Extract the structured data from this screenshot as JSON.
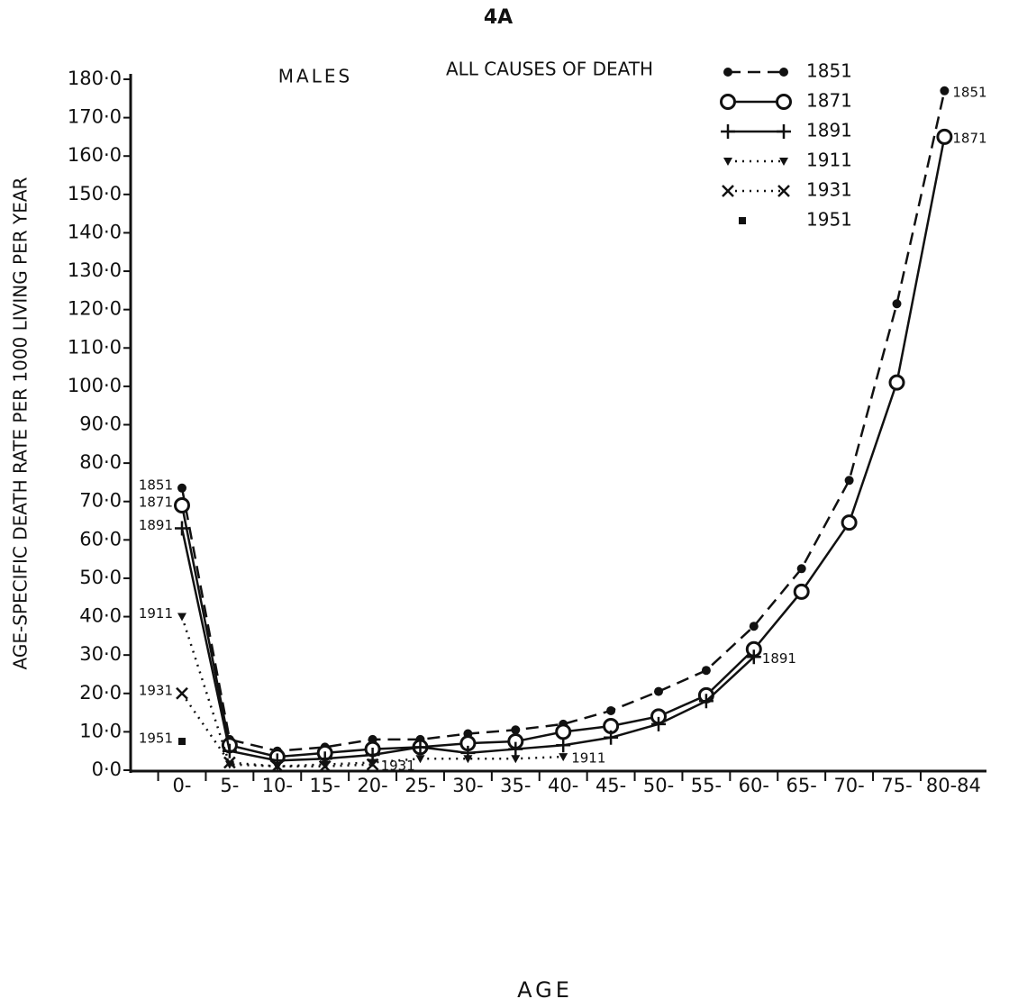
{
  "chart_data": {
    "type": "line",
    "title": "4A",
    "subtitle": "MALES",
    "annotation": "ALL CAUSES OF DEATH",
    "x_label": "AGE",
    "y_label": "AGE-SPECIFIC DEATH RATE  PER 1000 LIVING PER YEAR",
    "categories": [
      "0-",
      "5-",
      "10-",
      "15-",
      "20-",
      "25-",
      "30-",
      "35-",
      "40-",
      "45-",
      "50-",
      "55-",
      "60-",
      "65-",
      "70-",
      "75-",
      "80-84"
    ],
    "ylim": [
      0,
      180
    ],
    "yticks": [
      {
        "value": 0,
        "label": "0·0"
      },
      {
        "value": 10,
        "label": "10·0"
      },
      {
        "value": 20,
        "label": "20·0"
      },
      {
        "value": 30,
        "label": "30·0"
      },
      {
        "value": 40,
        "label": "40·0"
      },
      {
        "value": 50,
        "label": "50·0"
      },
      {
        "value": 60,
        "label": "60·0"
      },
      {
        "value": 70,
        "label": "70·0"
      },
      {
        "value": 80,
        "label": "80·0"
      },
      {
        "value": 90,
        "label": "90·0"
      },
      {
        "value": 100,
        "label": "100·0"
      },
      {
        "value": 110,
        "label": "110·0"
      },
      {
        "value": 120,
        "label": "120·0"
      },
      {
        "value": 130,
        "label": "130·0"
      },
      {
        "value": 140,
        "label": "140·0"
      },
      {
        "value": 150,
        "label": "150·0"
      },
      {
        "value": 160,
        "label": "160·0"
      },
      {
        "value": 170,
        "label": "170·0"
      },
      {
        "value": 180,
        "label": "180·0"
      }
    ],
    "grid": false,
    "legend": "upper right",
    "series": [
      {
        "name": "1851",
        "color": "#111111",
        "line": "dashed",
        "marker": "dot",
        "values": [
          73.5,
          8,
          5,
          6,
          8,
          8,
          9.5,
          10.5,
          12,
          15.5,
          20.5,
          26,
          37.5,
          52.5,
          75.5,
          121.5,
          177
        ]
      },
      {
        "name": "1871",
        "color": "#111111",
        "line": "solid",
        "marker": "circle",
        "values": [
          69,
          6.5,
          3.5,
          4.5,
          5.5,
          6,
          7,
          7.5,
          10,
          11.5,
          14,
          19.5,
          31.5,
          46.5,
          64.5,
          101,
          165
        ]
      },
      {
        "name": "1891",
        "color": "#111111",
        "line": "solid",
        "marker": "plus",
        "values": [
          63,
          5,
          2.5,
          3,
          4,
          6,
          4.5,
          5.5,
          6.5,
          8.5,
          12,
          18,
          29.5,
          null,
          null,
          null,
          null
        ]
      },
      {
        "name": "1911",
        "color": "#111111",
        "line": "dotted",
        "marker": "triangle",
        "values": [
          40,
          1.5,
          1,
          1.5,
          2,
          3,
          3,
          3,
          3.5,
          null,
          null,
          null,
          null,
          null,
          null,
          null,
          null
        ]
      },
      {
        "name": "1931",
        "color": "#111111",
        "line": "dotted",
        "marker": "x",
        "values": [
          20,
          2,
          1,
          1,
          1.5,
          null,
          null,
          null,
          null,
          null,
          null,
          null,
          null,
          null,
          null,
          null,
          null
        ]
      },
      {
        "name": "1951",
        "color": "#111111",
        "line": "none",
        "marker": "square",
        "values": [
          7.5,
          null,
          null,
          null,
          null,
          null,
          null,
          null,
          null,
          null,
          null,
          null,
          null,
          null,
          null,
          null,
          null
        ]
      }
    ]
  }
}
